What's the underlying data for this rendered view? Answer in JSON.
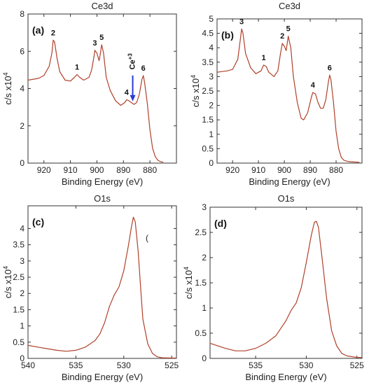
{
  "colors": {
    "curve": "#b0412a",
    "arrow": "#2a3bd4",
    "axis": "#333333"
  },
  "chart_data": [
    {
      "panel": "(a)",
      "title": "Ce3d",
      "type": "line",
      "xlabel": "Binding Energy (eV)",
      "ylabel": "c/s  x10",
      "ylabel_exp": "4",
      "xlim": [
        926,
        870
      ],
      "ylim": [
        0,
        8
      ],
      "xticks": [
        920,
        910,
        900,
        890,
        880
      ],
      "yticks": [
        0,
        2,
        4,
        6,
        8
      ],
      "peaks": [
        {
          "label": "2",
          "x": 916.5,
          "y": 6.6
        },
        {
          "label": "1",
          "x": 907.5,
          "y": 4.75
        },
        {
          "label": "3",
          "x": 900.8,
          "y": 6.05
        },
        {
          "label": "5",
          "x": 898.2,
          "y": 6.35
        },
        {
          "label": "4",
          "x": 888.8,
          "y": 3.4
        },
        {
          "label": "6",
          "x": 882.5,
          "y": 4.7
        }
      ],
      "annotation": {
        "text": "Ce",
        "sup": "+3",
        "x": 886.5,
        "y": 3.2
      },
      "x": [
        926,
        922,
        920,
        918,
        917,
        916.5,
        916,
        915,
        914,
        912,
        910,
        908.5,
        907.5,
        906.5,
        905,
        903,
        902,
        901,
        900.8,
        900,
        899.2,
        898.8,
        898.2,
        897.5,
        896.5,
        895,
        893,
        891,
        889.5,
        888.8,
        888,
        887,
        886,
        885,
        884,
        883,
        882.5,
        882,
        881,
        880,
        879,
        878,
        877,
        876,
        875
      ],
      "y": [
        4.45,
        4.55,
        4.7,
        5.2,
        5.9,
        6.6,
        6.5,
        5.6,
        4.9,
        4.45,
        4.4,
        4.6,
        4.75,
        4.6,
        4.45,
        4.6,
        5.0,
        5.8,
        6.05,
        5.9,
        5.5,
        5.8,
        6.35,
        5.9,
        4.6,
        3.9,
        3.35,
        3.1,
        3.25,
        3.4,
        3.35,
        3.25,
        3.15,
        3.25,
        3.7,
        4.5,
        4.7,
        4.3,
        3.2,
        1.8,
        0.8,
        0.35,
        0.15,
        0.08,
        0.05
      ]
    },
    {
      "panel": "(b)",
      "title": "Ce3d",
      "type": "line",
      "xlabel": "Binding Energy (eV)",
      "ylabel": "c/s  x10",
      "ylabel_exp": "4",
      "xlim": [
        926,
        870
      ],
      "ylim": [
        0,
        5
      ],
      "xticks": [
        920,
        910,
        900,
        890,
        880
      ],
      "yticks": [
        0,
        0.5,
        1,
        1.5,
        2,
        2.5,
        3,
        3.5,
        4,
        4.5,
        5
      ],
      "yticklabels": [
        "0",
        "0.5",
        "1",
        "1.5",
        "2",
        "2.5",
        "3",
        "3.5",
        "4",
        "4.5",
        "5"
      ],
      "peaks": [
        {
          "label": "3",
          "x": 916.5,
          "y": 4.65
        },
        {
          "label": "1",
          "x": 908,
          "y": 3.4
        },
        {
          "label": "2",
          "x": 900.8,
          "y": 4.15
        },
        {
          "label": "5",
          "x": 898.5,
          "y": 4.4
        },
        {
          "label": "4",
          "x": 889,
          "y": 2.45
        },
        {
          "label": "6",
          "x": 882.5,
          "y": 3.05
        }
      ],
      "x": [
        926,
        922,
        920,
        918,
        917,
        916.5,
        916,
        915,
        913,
        911,
        909,
        908,
        907,
        906,
        904,
        902.5,
        901.5,
        900.8,
        900,
        899.3,
        898.5,
        897.5,
        896.5,
        895,
        893.5,
        892.5,
        891,
        889.5,
        889,
        888,
        887,
        886,
        885,
        884,
        883,
        882.5,
        882,
        881,
        880,
        879,
        878,
        877,
        876,
        875,
        873,
        871
      ],
      "y": [
        3.15,
        3.2,
        3.25,
        3.6,
        4.3,
        4.65,
        4.5,
        3.8,
        3.3,
        3.1,
        3.2,
        3.4,
        3.35,
        3.15,
        3.0,
        3.2,
        3.8,
        4.15,
        4.05,
        3.9,
        4.4,
        4.0,
        3.0,
        2.1,
        1.55,
        1.5,
        1.75,
        2.3,
        2.45,
        2.4,
        2.1,
        1.9,
        1.9,
        2.2,
        2.8,
        3.05,
        2.9,
        2.1,
        1.1,
        0.5,
        0.2,
        0.1,
        0.07,
        0.05,
        0.04,
        0.03
      ]
    },
    {
      "panel": "(c)",
      "title": "O1s",
      "type": "line",
      "xlabel": "Binding Energy (eV)",
      "ylabel": "c/s  x10",
      "ylabel_exp": "4",
      "xlim": [
        540,
        524.5
      ],
      "ylim": [
        0,
        4.7
      ],
      "xticks": [
        540,
        535,
        530,
        525
      ],
      "yticks": [
        0,
        0.5,
        1,
        1.5,
        2,
        2.5,
        3,
        3.5,
        4
      ],
      "yticklabels": [
        "0",
        "0.5",
        "1",
        "1.5",
        "2",
        "2.5",
        "3",
        "3.5",
        "4"
      ],
      "stray_text": "(",
      "x": [
        540,
        539,
        538,
        537,
        536,
        535,
        534,
        533,
        532.5,
        532,
        531.5,
        531,
        530.5,
        530,
        529.5,
        529.2,
        529,
        528.8,
        528.5,
        528.2,
        528,
        527.5,
        527,
        526.5,
        526,
        525,
        524.5
      ],
      "y": [
        0.4,
        0.35,
        0.3,
        0.25,
        0.22,
        0.25,
        0.35,
        0.55,
        0.75,
        1.1,
        1.6,
        1.95,
        2.2,
        2.7,
        3.5,
        4.05,
        4.35,
        4.2,
        3.3,
        2.0,
        1.2,
        0.45,
        0.15,
        0.05,
        0.02,
        0.01,
        0.01
      ]
    },
    {
      "panel": "(d)",
      "title": "O1s",
      "type": "line",
      "xlabel": "Binding Energy (eV)",
      "ylabel": "c/s  x10",
      "ylabel_exp": "4",
      "xlim": [
        539.5,
        524.5
      ],
      "ylim": [
        0,
        3
      ],
      "xticks": [
        535,
        530,
        525
      ],
      "yticks": [
        0,
        0.5,
        1,
        1.5,
        2,
        2.5,
        3
      ],
      "yticklabels": [
        "0",
        "0.5",
        "1",
        "1.5",
        "2",
        "2.5",
        "3"
      ],
      "x": [
        539.5,
        538,
        537,
        536,
        535,
        534,
        533,
        532.5,
        532,
        531.5,
        531,
        530.5,
        530,
        529.5,
        529.2,
        529,
        528.8,
        528.5,
        528,
        527.5,
        527,
        526.5,
        526,
        525,
        524.5
      ],
      "y": [
        0.3,
        0.2,
        0.15,
        0.15,
        0.2,
        0.3,
        0.45,
        0.6,
        0.75,
        0.95,
        1.1,
        1.4,
        1.9,
        2.45,
        2.7,
        2.72,
        2.6,
        2.1,
        1.2,
        0.55,
        0.25,
        0.1,
        0.05,
        0.02,
        0.02
      ]
    }
  ]
}
